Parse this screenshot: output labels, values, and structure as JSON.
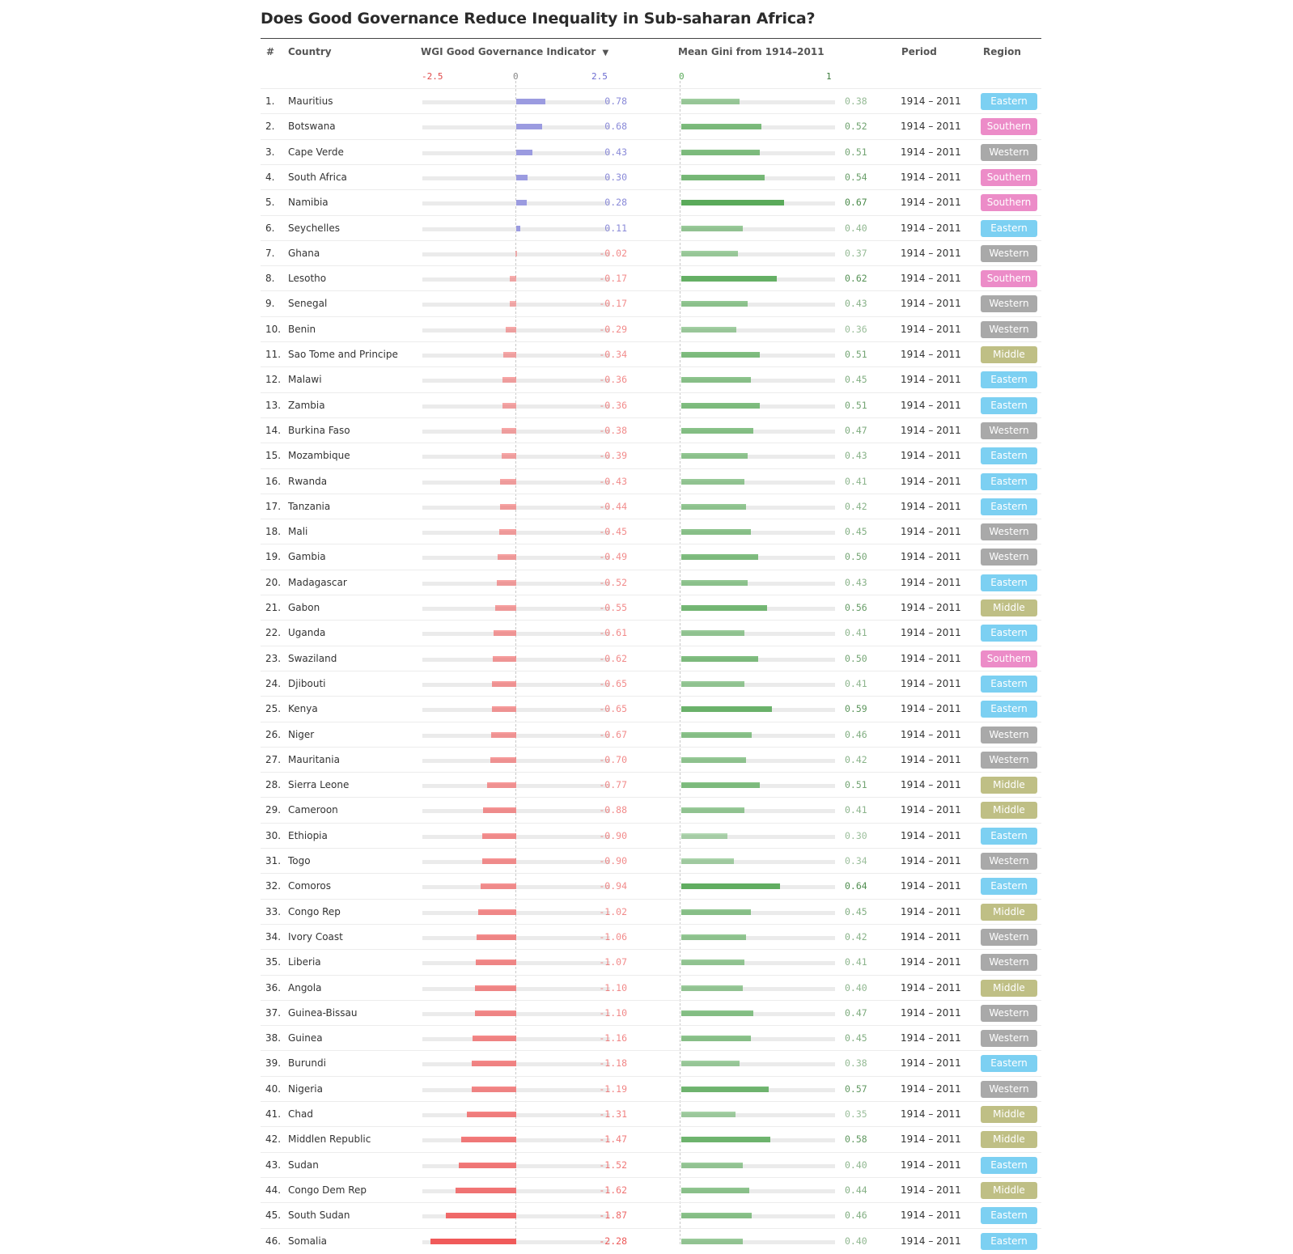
{
  "title": "Does Good Governance Reduce Inequality in Sub-saharan Africa?",
  "headers": {
    "rank": "#",
    "country": "Country",
    "wgi": "WGI Good Governance Indicator",
    "sort_arrow": "▼",
    "gini": "Mean Gini from 1914–2011",
    "period": "Period",
    "region": "Region"
  },
  "wgi_axis": {
    "min_label": "-2.5",
    "zero_label": "0",
    "max_label": "2.5"
  },
  "gini_axis": {
    "min_label": "0",
    "max_label": "1"
  },
  "colors": {
    "wgi_positive": "#9b9be0",
    "wgi_negative": "#f05a5a",
    "gini": "#5aaa5a",
    "Eastern": "#7cd0f2",
    "Southern": "#ec8cc8",
    "Western": "#a9a9a9",
    "Middle": "#bfbf85"
  },
  "chart_data": {
    "type": "table",
    "columns": [
      "#",
      "Country",
      "WGI Good Governance Indicator",
      "Mean Gini from 1914–2011",
      "Period",
      "Region"
    ],
    "wgi_range": [
      -2.5,
      2.5
    ],
    "gini_range": [
      0,
      1
    ],
    "rows": [
      {
        "rank": "1.",
        "country": "Mauritius",
        "wgi": 0.78,
        "wgi_label": "0.78",
        "gini": 0.38,
        "gini_label": "0.38",
        "period": "1914 – 2011",
        "region": "Eastern"
      },
      {
        "rank": "2.",
        "country": "Botswana",
        "wgi": 0.68,
        "wgi_label": "0.68",
        "gini": 0.52,
        "gini_label": "0.52",
        "period": "1914 – 2011",
        "region": "Southern"
      },
      {
        "rank": "3.",
        "country": "Cape Verde",
        "wgi": 0.43,
        "wgi_label": "0.43",
        "gini": 0.51,
        "gini_label": "0.51",
        "period": "1914 – 2011",
        "region": "Western"
      },
      {
        "rank": "4.",
        "country": "South Africa",
        "wgi": 0.3,
        "wgi_label": "0.30",
        "gini": 0.54,
        "gini_label": "0.54",
        "period": "1914 – 2011",
        "region": "Southern"
      },
      {
        "rank": "5.",
        "country": "Namibia",
        "wgi": 0.28,
        "wgi_label": "0.28",
        "gini": 0.67,
        "gini_label": "0.67",
        "period": "1914 – 2011",
        "region": "Southern"
      },
      {
        "rank": "6.",
        "country": "Seychelles",
        "wgi": 0.11,
        "wgi_label": "0.11",
        "gini": 0.4,
        "gini_label": "0.40",
        "period": "1914 – 2011",
        "region": "Eastern"
      },
      {
        "rank": "7.",
        "country": "Ghana",
        "wgi": -0.02,
        "wgi_label": "-0.02",
        "gini": 0.37,
        "gini_label": "0.37",
        "period": "1914 – 2011",
        "region": "Western"
      },
      {
        "rank": "8.",
        "country": "Lesotho",
        "wgi": -0.17,
        "wgi_label": "-0.17",
        "gini": 0.62,
        "gini_label": "0.62",
        "period": "1914 – 2011",
        "region": "Southern"
      },
      {
        "rank": "9.",
        "country": "Senegal",
        "wgi": -0.17,
        "wgi_label": "-0.17",
        "gini": 0.43,
        "gini_label": "0.43",
        "period": "1914 – 2011",
        "region": "Western"
      },
      {
        "rank": "10.",
        "country": "Benin",
        "wgi": -0.29,
        "wgi_label": "-0.29",
        "gini": 0.36,
        "gini_label": "0.36",
        "period": "1914 – 2011",
        "region": "Western"
      },
      {
        "rank": "11.",
        "country": "Sao Tome and Principe",
        "wgi": -0.34,
        "wgi_label": "-0.34",
        "gini": 0.51,
        "gini_label": "0.51",
        "period": "1914 – 2011",
        "region": "Middle"
      },
      {
        "rank": "12.",
        "country": "Malawi",
        "wgi": -0.36,
        "wgi_label": "-0.36",
        "gini": 0.45,
        "gini_label": "0.45",
        "period": "1914 – 2011",
        "region": "Eastern"
      },
      {
        "rank": "13.",
        "country": "Zambia",
        "wgi": -0.36,
        "wgi_label": "-0.36",
        "gini": 0.51,
        "gini_label": "0.51",
        "period": "1914 – 2011",
        "region": "Eastern"
      },
      {
        "rank": "14.",
        "country": "Burkina Faso",
        "wgi": -0.38,
        "wgi_label": "-0.38",
        "gini": 0.47,
        "gini_label": "0.47",
        "period": "1914 – 2011",
        "region": "Western"
      },
      {
        "rank": "15.",
        "country": "Mozambique",
        "wgi": -0.39,
        "wgi_label": "-0.39",
        "gini": 0.43,
        "gini_label": "0.43",
        "period": "1914 – 2011",
        "region": "Eastern"
      },
      {
        "rank": "16.",
        "country": "Rwanda",
        "wgi": -0.43,
        "wgi_label": "-0.43",
        "gini": 0.41,
        "gini_label": "0.41",
        "period": "1914 – 2011",
        "region": "Eastern"
      },
      {
        "rank": "17.",
        "country": "Tanzania",
        "wgi": -0.44,
        "wgi_label": "-0.44",
        "gini": 0.42,
        "gini_label": "0.42",
        "period": "1914 – 2011",
        "region": "Eastern"
      },
      {
        "rank": "18.",
        "country": "Mali",
        "wgi": -0.45,
        "wgi_label": "-0.45",
        "gini": 0.45,
        "gini_label": "0.45",
        "period": "1914 – 2011",
        "region": "Western"
      },
      {
        "rank": "19.",
        "country": "Gambia",
        "wgi": -0.49,
        "wgi_label": "-0.49",
        "gini": 0.5,
        "gini_label": "0.50",
        "period": "1914 – 2011",
        "region": "Western"
      },
      {
        "rank": "20.",
        "country": "Madagascar",
        "wgi": -0.52,
        "wgi_label": "-0.52",
        "gini": 0.43,
        "gini_label": "0.43",
        "period": "1914 – 2011",
        "region": "Eastern"
      },
      {
        "rank": "21.",
        "country": "Gabon",
        "wgi": -0.55,
        "wgi_label": "-0.55",
        "gini": 0.56,
        "gini_label": "0.56",
        "period": "1914 – 2011",
        "region": "Middle"
      },
      {
        "rank": "22.",
        "country": "Uganda",
        "wgi": -0.61,
        "wgi_label": "-0.61",
        "gini": 0.41,
        "gini_label": "0.41",
        "period": "1914 – 2011",
        "region": "Eastern"
      },
      {
        "rank": "23.",
        "country": "Swaziland",
        "wgi": -0.62,
        "wgi_label": "-0.62",
        "gini": 0.5,
        "gini_label": "0.50",
        "period": "1914 – 2011",
        "region": "Southern"
      },
      {
        "rank": "24.",
        "country": "Djibouti",
        "wgi": -0.65,
        "wgi_label": "-0.65",
        "gini": 0.41,
        "gini_label": "0.41",
        "period": "1914 – 2011",
        "region": "Eastern"
      },
      {
        "rank": "25.",
        "country": "Kenya",
        "wgi": -0.65,
        "wgi_label": "-0.65",
        "gini": 0.59,
        "gini_label": "0.59",
        "period": "1914 – 2011",
        "region": "Eastern"
      },
      {
        "rank": "26.",
        "country": "Niger",
        "wgi": -0.67,
        "wgi_label": "-0.67",
        "gini": 0.46,
        "gini_label": "0.46",
        "period": "1914 – 2011",
        "region": "Western"
      },
      {
        "rank": "27.",
        "country": "Mauritania",
        "wgi": -0.7,
        "wgi_label": "-0.70",
        "gini": 0.42,
        "gini_label": "0.42",
        "period": "1914 – 2011",
        "region": "Western"
      },
      {
        "rank": "28.",
        "country": "Sierra Leone",
        "wgi": -0.77,
        "wgi_label": "-0.77",
        "gini": 0.51,
        "gini_label": "0.51",
        "period": "1914 – 2011",
        "region": "Middle"
      },
      {
        "rank": "29.",
        "country": "Cameroon",
        "wgi": -0.88,
        "wgi_label": "-0.88",
        "gini": 0.41,
        "gini_label": "0.41",
        "period": "1914 – 2011",
        "region": "Middle"
      },
      {
        "rank": "30.",
        "country": "Ethiopia",
        "wgi": -0.9,
        "wgi_label": "-0.90",
        "gini": 0.3,
        "gini_label": "0.30",
        "period": "1914 – 2011",
        "region": "Eastern"
      },
      {
        "rank": "31.",
        "country": "Togo",
        "wgi": -0.9,
        "wgi_label": "-0.90",
        "gini": 0.34,
        "gini_label": "0.34",
        "period": "1914 – 2011",
        "region": "Western"
      },
      {
        "rank": "32.",
        "country": "Comoros",
        "wgi": -0.94,
        "wgi_label": "-0.94",
        "gini": 0.64,
        "gini_label": "0.64",
        "period": "1914 – 2011",
        "region": "Eastern"
      },
      {
        "rank": "33.",
        "country": "Congo Rep",
        "wgi": -1.02,
        "wgi_label": "-1.02",
        "gini": 0.45,
        "gini_label": "0.45",
        "period": "1914 – 2011",
        "region": "Middle"
      },
      {
        "rank": "34.",
        "country": "Ivory Coast",
        "wgi": -1.06,
        "wgi_label": "-1.06",
        "gini": 0.42,
        "gini_label": "0.42",
        "period": "1914 – 2011",
        "region": "Western"
      },
      {
        "rank": "35.",
        "country": "Liberia",
        "wgi": -1.07,
        "wgi_label": "-1.07",
        "gini": 0.41,
        "gini_label": "0.41",
        "period": "1914 – 2011",
        "region": "Western"
      },
      {
        "rank": "36.",
        "country": "Angola",
        "wgi": -1.1,
        "wgi_label": "-1.10",
        "gini": 0.4,
        "gini_label": "0.40",
        "period": "1914 – 2011",
        "region": "Middle"
      },
      {
        "rank": "37.",
        "country": "Guinea-Bissau",
        "wgi": -1.1,
        "wgi_label": "-1.10",
        "gini": 0.47,
        "gini_label": "0.47",
        "period": "1914 – 2011",
        "region": "Western"
      },
      {
        "rank": "38.",
        "country": "Guinea",
        "wgi": -1.16,
        "wgi_label": "-1.16",
        "gini": 0.45,
        "gini_label": "0.45",
        "period": "1914 – 2011",
        "region": "Western"
      },
      {
        "rank": "39.",
        "country": "Burundi",
        "wgi": -1.18,
        "wgi_label": "-1.18",
        "gini": 0.38,
        "gini_label": "0.38",
        "period": "1914 – 2011",
        "region": "Eastern"
      },
      {
        "rank": "40.",
        "country": "Nigeria",
        "wgi": -1.19,
        "wgi_label": "-1.19",
        "gini": 0.57,
        "gini_label": "0.57",
        "period": "1914 – 2011",
        "region": "Western"
      },
      {
        "rank": "41.",
        "country": "Chad",
        "wgi": -1.31,
        "wgi_label": "-1.31",
        "gini": 0.35,
        "gini_label": "0.35",
        "period": "1914 – 2011",
        "region": "Middle"
      },
      {
        "rank": "42.",
        "country": "Middlen Republic",
        "wgi": -1.47,
        "wgi_label": "-1.47",
        "gini": 0.58,
        "gini_label": "0.58",
        "period": "1914 – 2011",
        "region": "Middle"
      },
      {
        "rank": "43.",
        "country": "Sudan",
        "wgi": -1.52,
        "wgi_label": "-1.52",
        "gini": 0.4,
        "gini_label": "0.40",
        "period": "1914 – 2011",
        "region": "Eastern"
      },
      {
        "rank": "44.",
        "country": "Congo Dem Rep",
        "wgi": -1.62,
        "wgi_label": "-1.62",
        "gini": 0.44,
        "gini_label": "0.44",
        "period": "1914 – 2011",
        "region": "Middle"
      },
      {
        "rank": "45.",
        "country": "South Sudan",
        "wgi": -1.87,
        "wgi_label": "-1.87",
        "gini": 0.46,
        "gini_label": "0.46",
        "period": "1914 – 2011",
        "region": "Eastern"
      },
      {
        "rank": "46.",
        "country": "Somalia",
        "wgi": -2.28,
        "wgi_label": "-2.28",
        "gini": 0.4,
        "gini_label": "0.40",
        "period": "1914 – 2011",
        "region": "Eastern"
      }
    ]
  }
}
